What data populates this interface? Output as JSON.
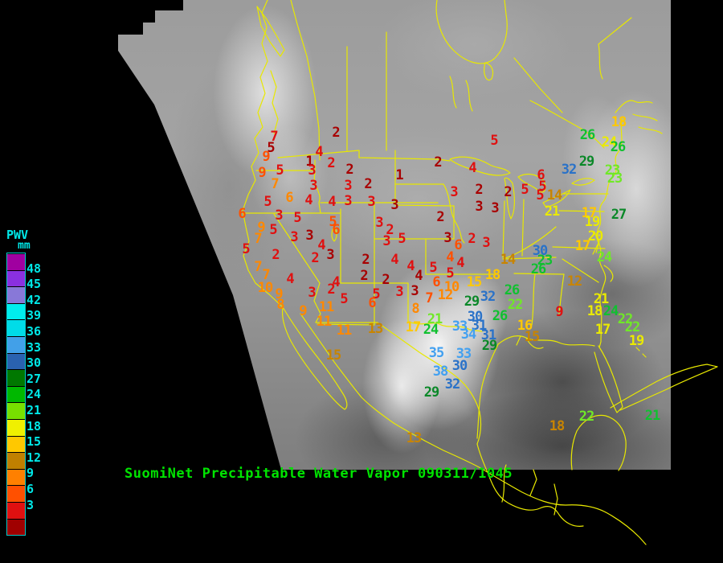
{
  "caption": {
    "text": "SuomiNet Precipitable Water Vapor 090311/1045",
    "color": "#00E400"
  },
  "legend": {
    "title": "PWV",
    "unit": "mm",
    "text_color": "#00E8E8",
    "tick_labels": [
      "48",
      "45",
      "42",
      "39",
      "36",
      "33",
      "30",
      "27",
      "24",
      "21",
      "18",
      "15",
      "12",
      "9",
      "6",
      "3"
    ],
    "colors": [
      "#A000A0",
      "#8A30E0",
      "#8878D8",
      "#00EEEE",
      "#00DCE8",
      "#42A0E8",
      "#2A62B0",
      "#007800",
      "#00B800",
      "#78E000",
      "#F0F000",
      "#FFC800",
      "#C08000",
      "#FF8000",
      "#FF5000",
      "#E01010",
      "#A00000"
    ]
  },
  "palette": {
    "c1": "#A80000",
    "c2": "#E01010",
    "c3": "#FF5000",
    "c4": "#FF8800",
    "c5": "#C88400",
    "c6": "#FFC800",
    "c7": "#EAEA00",
    "c8": "#70E828",
    "c9": "#10C030",
    "c10": "#0A8828",
    "c11": "#2A72C8",
    "c12": "#42A0F0"
  },
  "stations": [
    [
      341,
      170,
      "7",
      "c2"
    ],
    [
      337,
      184,
      "5",
      "c1"
    ],
    [
      331,
      195,
      "9",
      "c3"
    ],
    [
      326,
      215,
      "9",
      "c3"
    ],
    [
      348,
      212,
      "5",
      "c2"
    ],
    [
      342,
      229,
      "7",
      "c4"
    ],
    [
      360,
      246,
      "6",
      "c4"
    ],
    [
      333,
      251,
      "5",
      "c2"
    ],
    [
      418,
      165,
      "2",
      "c1"
    ],
    [
      397,
      189,
      "4",
      "c2"
    ],
    [
      385,
      201,
      "1",
      "c1"
    ],
    [
      388,
      212,
      "3",
      "c2"
    ],
    [
      412,
      203,
      "2",
      "c2"
    ],
    [
      435,
      211,
      "2",
      "c1"
    ],
    [
      433,
      231,
      "3",
      "c2"
    ],
    [
      458,
      229,
      "2",
      "c1"
    ],
    [
      390,
      231,
      "3",
      "c2"
    ],
    [
      384,
      249,
      "4",
      "c2"
    ],
    [
      413,
      251,
      "4",
      "c2"
    ],
    [
      433,
      250,
      "3",
      "c2"
    ],
    [
      462,
      251,
      "3",
      "c2"
    ],
    [
      301,
      266,
      "6",
      "c3"
    ],
    [
      347,
      268,
      "3",
      "c2"
    ],
    [
      370,
      271,
      "5",
      "c2"
    ],
    [
      414,
      276,
      "5",
      "c3"
    ],
    [
      418,
      286,
      "6",
      "c3"
    ],
    [
      325,
      283,
      "9",
      "c4"
    ],
    [
      340,
      286,
      "5",
      "c2"
    ],
    [
      321,
      297,
      "7",
      "c4"
    ],
    [
      366,
      295,
      "3",
      "c2"
    ],
    [
      385,
      293,
      "3",
      "c1"
    ],
    [
      400,
      305,
      "4",
      "c2"
    ],
    [
      472,
      277,
      "3",
      "c2"
    ],
    [
      485,
      286,
      "2",
      "c2"
    ],
    [
      481,
      300,
      "3",
      "c2"
    ],
    [
      306,
      310,
      "5",
      "c2"
    ],
    [
      343,
      317,
      "2",
      "c2"
    ],
    [
      392,
      321,
      "2",
      "c2"
    ],
    [
      411,
      317,
      "3",
      "c1"
    ],
    [
      455,
      323,
      "2",
      "c1"
    ],
    [
      321,
      332,
      "7",
      "c4"
    ],
    [
      331,
      342,
      "7",
      "c4"
    ],
    [
      361,
      347,
      "4",
      "c2"
    ],
    [
      453,
      343,
      "2",
      "c1"
    ],
    [
      480,
      348,
      "2",
      "c1"
    ],
    [
      330,
      358,
      "10",
      "c4"
    ],
    [
      347,
      366,
      "9",
      "c4"
    ],
    [
      418,
      351,
      "4",
      "c2"
    ],
    [
      388,
      364,
      "3",
      "c2"
    ],
    [
      412,
      360,
      "2",
      "c2"
    ],
    [
      428,
      372,
      "5",
      "c2"
    ],
    [
      468,
      366,
      "5",
      "c2"
    ],
    [
      463,
      377,
      "6",
      "c3"
    ],
    [
      349,
      379,
      "8",
      "c4"
    ],
    [
      377,
      387,
      "9",
      "c4"
    ],
    [
      406,
      382,
      "11",
      "c4"
    ],
    [
      403,
      400,
      "11",
      "c4"
    ],
    [
      428,
      411,
      "11",
      "c4"
    ],
    [
      467,
      409,
      "13",
      "c5"
    ],
    [
      415,
      442,
      "15",
      "c5"
    ],
    [
      497,
      218,
      "1",
      "c1"
    ],
    [
      545,
      202,
      "2",
      "c1"
    ],
    [
      615,
      175,
      "5",
      "c2"
    ],
    [
      588,
      209,
      "4",
      "c2"
    ],
    [
      565,
      239,
      "3",
      "c2"
    ],
    [
      596,
      236,
      "2",
      "c1"
    ],
    [
      632,
      239,
      "2",
      "c1"
    ],
    [
      491,
      255,
      "3",
      "c1"
    ],
    [
      596,
      257,
      "3",
      "c1"
    ],
    [
      616,
      259,
      "3",
      "c1"
    ],
    [
      548,
      270,
      "2",
      "c1"
    ],
    [
      500,
      297,
      "5",
      "c2"
    ],
    [
      557,
      296,
      "3",
      "c1"
    ],
    [
      587,
      297,
      "2",
      "c2"
    ],
    [
      605,
      302,
      "3",
      "c2"
    ],
    [
      570,
      305,
      "6",
      "c3"
    ],
    [
      673,
      218,
      "6",
      "c2"
    ],
    [
      653,
      236,
      "5",
      "c2"
    ],
    [
      675,
      232,
      "5",
      "c2"
    ],
    [
      672,
      243,
      "5",
      "c2"
    ],
    [
      690,
      243,
      "14",
      "c5"
    ],
    [
      687,
      263,
      "21",
      "c7"
    ],
    [
      491,
      323,
      "4",
      "c2"
    ],
    [
      511,
      331,
      "4",
      "c2"
    ],
    [
      560,
      320,
      "4",
      "c3"
    ],
    [
      573,
      327,
      "4",
      "c2"
    ],
    [
      632,
      323,
      "14",
      "c5"
    ],
    [
      521,
      343,
      "4",
      "c1"
    ],
    [
      539,
      333,
      "5",
      "c2"
    ],
    [
      560,
      340,
      "5",
      "c2"
    ],
    [
      543,
      351,
      "6",
      "c3"
    ],
    [
      590,
      351,
      "15",
      "c6"
    ],
    [
      613,
      342,
      "18",
      "c6"
    ],
    [
      497,
      363,
      "3",
      "c2"
    ],
    [
      516,
      362,
      "3",
      "c1"
    ],
    [
      534,
      371,
      "7",
      "c3"
    ],
    [
      562,
      357,
      "10",
      "c4"
    ],
    [
      554,
      367,
      "12",
      "c4"
    ],
    [
      517,
      384,
      "8",
      "c4"
    ],
    [
      514,
      407,
      "17",
      "c6"
    ],
    [
      541,
      397,
      "21",
      "c8"
    ],
    [
      536,
      410,
      "24",
      "c9"
    ],
    [
      587,
      375,
      "29",
      "c10"
    ],
    [
      607,
      369,
      "32",
      "c11"
    ],
    [
      591,
      394,
      "30",
      "c11"
    ],
    [
      596,
      405,
      "31",
      "c11"
    ],
    [
      572,
      406,
      "33",
      "c12"
    ],
    [
      583,
      416,
      "34",
      "c12"
    ],
    [
      608,
      417,
      "31",
      "c11"
    ],
    [
      609,
      430,
      "29",
      "c10"
    ],
    [
      637,
      361,
      "26",
      "c9"
    ],
    [
      641,
      379,
      "22",
      "c8"
    ],
    [
      622,
      393,
      "26",
      "c9"
    ],
    [
      543,
      439,
      "35",
      "c12"
    ],
    [
      577,
      440,
      "33",
      "c12"
    ],
    [
      572,
      455,
      "30",
      "c11"
    ],
    [
      548,
      462,
      "38",
      "c12"
    ],
    [
      563,
      478,
      "32",
      "c11"
    ],
    [
      537,
      488,
      "29",
      "c10"
    ],
    [
      672,
      312,
      "30",
      "c11"
    ],
    [
      678,
      324,
      "23",
      "c9"
    ],
    [
      670,
      335,
      "26",
      "c9"
    ],
    [
      715,
      350,
      "12",
      "c5"
    ],
    [
      696,
      388,
      "9",
      "c2"
    ],
    [
      653,
      405,
      "16",
      "c6"
    ],
    [
      662,
      419,
      "15",
      "c5"
    ],
    [
      733,
      265,
      "17",
      "c6"
    ],
    [
      737,
      276,
      "19",
      "c7"
    ],
    [
      741,
      294,
      "20",
      "c7"
    ],
    [
      725,
      306,
      "17",
      "c6"
    ],
    [
      752,
      320,
      "24",
      "c8"
    ],
    [
      770,
      267,
      "27",
      "c10"
    ],
    [
      748,
      372,
      "21",
      "c7"
    ],
    [
      740,
      387,
      "18",
      "c7"
    ],
    [
      760,
      387,
      "24",
      "c9"
    ],
    [
      778,
      397,
      "22",
      "c8"
    ],
    [
      787,
      407,
      "22",
      "c8"
    ],
    [
      750,
      410,
      "17",
      "c7"
    ],
    [
      792,
      424,
      "19",
      "c7"
    ],
    [
      731,
      168,
      "26",
      "c9"
    ],
    [
      758,
      177,
      "24",
      "c7"
    ],
    [
      769,
      183,
      "26",
      "c9"
    ],
    [
      730,
      201,
      "29",
      "c10"
    ],
    [
      708,
      211,
      "32",
      "c11"
    ],
    [
      762,
      212,
      "23",
      "c8"
    ],
    [
      765,
      222,
      "23",
      "c8"
    ],
    [
      770,
      152,
      "18",
      "c6"
    ],
    [
      515,
      545,
      "13",
      "c5"
    ],
    [
      693,
      530,
      "18",
      "c5"
    ],
    [
      730,
      518,
      "22",
      "c8"
    ],
    [
      812,
      517,
      "21",
      "c9"
    ]
  ]
}
